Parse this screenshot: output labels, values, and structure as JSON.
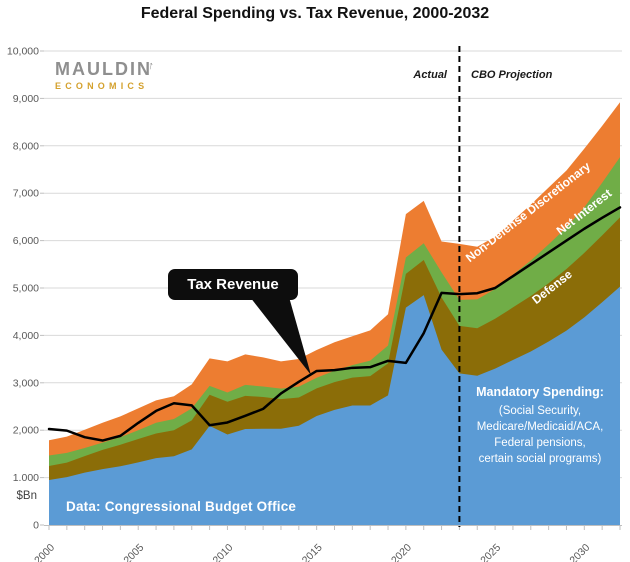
{
  "title": "Federal Spending vs. Tax Revenue, 2000-2032",
  "logo": {
    "name": "MAULDIN",
    "sub": "ECONOMICS",
    "arrow": "↑"
  },
  "period_labels": {
    "actual": "Actual",
    "projection": "CBO Projection"
  },
  "callout": {
    "label": "Tax Revenue"
  },
  "annotations": {
    "non_defense": {
      "label": "Non-Defense Discretionary"
    },
    "net_interest": {
      "label": "Net Interest"
    },
    "defense": {
      "label": "Defense"
    },
    "mandatory": {
      "title": "Mandatory Spending:",
      "lines": [
        "(Social Security,",
        "Medicare/Medicaid/ACA,",
        "Federal pensions,",
        "certain social programs)"
      ]
    }
  },
  "source_note": "Data: Congressional Budget Office",
  "colors": {
    "mandatory": "#5B9BD5",
    "defense": "#8B6D08",
    "net_interest": "#70AD47",
    "non_defense": "#ED7D31",
    "revenue_line": "#000000",
    "gridline": "#D9D9D9",
    "axis_tick": "#BFBFBF",
    "axis_text": "#595959",
    "divider": "#000000"
  },
  "axis": {
    "unit": "$Bn",
    "y_tick_labels": [
      "0",
      "1.000",
      "2,000",
      "3,000",
      "4,000",
      "5,000",
      "6,000",
      "7,000",
      "8,000",
      "9,000",
      "10,000"
    ],
    "x_tick_labels": [
      "2000",
      "2005",
      "2010",
      "2015",
      "2020",
      "2025",
      "2030"
    ]
  },
  "chart_data": {
    "type": "area",
    "subtype": "stacked-area-with-line",
    "title": "Federal Spending vs. Tax Revenue, 2000-2032",
    "ylabel": "$Bn",
    "ylim": [
      0,
      10000
    ],
    "x": [
      2000,
      2001,
      2002,
      2003,
      2004,
      2005,
      2006,
      2007,
      2008,
      2009,
      2010,
      2011,
      2012,
      2013,
      2014,
      2015,
      2016,
      2017,
      2018,
      2019,
      2020,
      2021,
      2022,
      2023,
      2024,
      2025,
      2026,
      2027,
      2028,
      2029,
      2030,
      2031,
      2032
    ],
    "divider_year": 2023,
    "series": [
      {
        "name": "Mandatory Spending",
        "values": [
          950,
          1010,
          1105,
          1180,
          1240,
          1320,
          1410,
          1450,
          1595,
          2090,
          1910,
          2025,
          2030,
          2030,
          2095,
          2300,
          2430,
          2520,
          2520,
          2735,
          4585,
          4850,
          3700,
          3200,
          3150,
          3300,
          3480,
          3660,
          3870,
          4100,
          4380,
          4700,
          5030
        ]
      },
      {
        "name": "Defense",
        "values": [
          295,
          306,
          349,
          405,
          454,
          494,
          520,
          548,
          612,
          657,
          689,
          700,
          671,
          626,
          596,
          583,
          585,
          590,
          622,
          676,
          714,
          742,
          1100,
          1000,
          1000,
          1050,
          1110,
          1170,
          1230,
          1300,
          1360,
          1410,
          1460
        ]
      },
      {
        "name": "Net Interest",
        "values": [
          222,
          206,
          171,
          153,
          160,
          184,
          227,
          237,
          253,
          187,
          196,
          230,
          220,
          221,
          229,
          223,
          240,
          263,
          325,
          375,
          345,
          352,
          530,
          550,
          610,
          630,
          690,
          750,
          820,
          880,
          960,
          1110,
          1270
        ]
      },
      {
        "name": "Non-Defense Discretionary",
        "values": [
          320,
          343,
          385,
          420,
          438,
          462,
          471,
          482,
          508,
          581,
          658,
          646,
          615,
          576,
          583,
          585,
          600,
          610,
          639,
          661,
          914,
          895,
          650,
          1180,
          1110,
          1100,
          1140,
          1180,
          1200,
          1200,
          1240,
          1200,
          1160
        ]
      }
    ],
    "line": {
      "name": "Tax Revenue",
      "values": [
        2025,
        1991,
        1853,
        1782,
        1880,
        2154,
        2407,
        2568,
        2524,
        2105,
        2163,
        2304,
        2450,
        2775,
        3021,
        3250,
        3268,
        3316,
        3330,
        3463,
        3421,
        4047,
        4897,
        4870,
        4890,
        5000,
        5250,
        5500,
        5750,
        6000,
        6250,
        6480,
        6700
      ]
    },
    "legend_position": "in-plot-labels",
    "grid": "horizontal"
  }
}
